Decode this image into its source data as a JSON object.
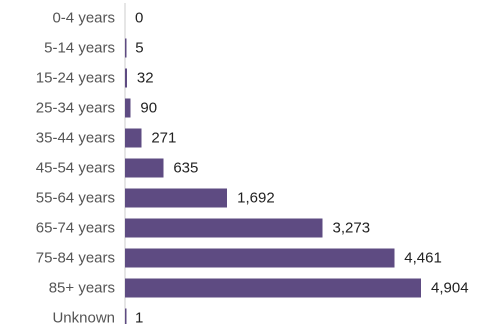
{
  "chart_data": {
    "type": "bar",
    "orientation": "horizontal",
    "title": "",
    "xlabel": "",
    "ylabel": "",
    "categories": [
      "0-4 years",
      "5-14 years",
      "15-24 years",
      "25-34 years",
      "35-44 years",
      "45-54 years",
      "55-64 years",
      "65-74 years",
      "75-84 years",
      "85+ years",
      "Unknown"
    ],
    "values": [
      0,
      5,
      32,
      90,
      271,
      635,
      1692,
      3273,
      4461,
      4904,
      1
    ],
    "value_labels": [
      "0",
      "5",
      "32",
      "90",
      "271",
      "635",
      "1,692",
      "3,273",
      "4,461",
      "4,904",
      "1"
    ],
    "xlim": [
      0,
      4904
    ],
    "bar_color": "#5e4b82",
    "axis_color": "#cccccc",
    "grid": false,
    "legend": "none"
  }
}
